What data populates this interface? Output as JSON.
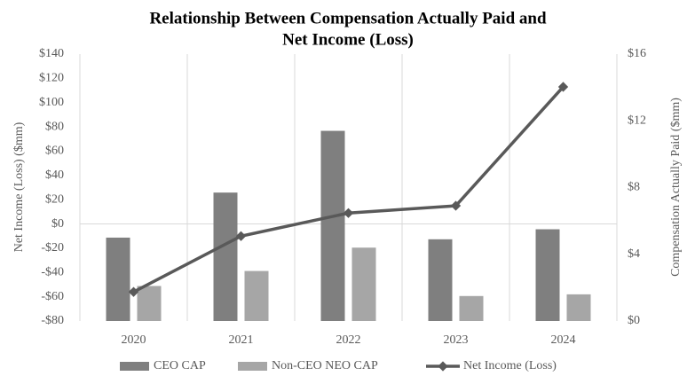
{
  "chart_data": {
    "type": "bar-line",
    "title": [
      "Relationship Between Compensation Actually Paid and",
      "Net Income (Loss)"
    ],
    "y_label": "Net Income (Loss) ($mm)",
    "y2_label": "Compensation Actually Paid ($mm)",
    "categories": [
      "2020",
      "2021",
      "2022",
      "2023",
      "2024"
    ],
    "ylim": [
      -80,
      140
    ],
    "yticks": [
      {
        "value": -80,
        "label": "-$80"
      },
      {
        "value": -60,
        "label": "-$60"
      },
      {
        "value": -40,
        "label": "-$40"
      },
      {
        "value": -20,
        "label": "-$20"
      },
      {
        "value": 0,
        "label": "$0"
      },
      {
        "value": 20,
        "label": "$20"
      },
      {
        "value": 40,
        "label": "$40"
      },
      {
        "value": 60,
        "label": "$60"
      },
      {
        "value": 80,
        "label": "$80"
      },
      {
        "value": 100,
        "label": "$100"
      },
      {
        "value": 120,
        "label": "$120"
      },
      {
        "value": 140,
        "label": "$140"
      }
    ],
    "y2lim": [
      0,
      16
    ],
    "y2ticks": [
      {
        "value": 0,
        "label": "$0"
      },
      {
        "value": 4,
        "label": "$4"
      },
      {
        "value": 8,
        "label": "$8"
      },
      {
        "value": 12,
        "label": "$12"
      },
      {
        "value": 16,
        "label": "$16"
      }
    ],
    "series": [
      {
        "name": "CEO CAP",
        "type": "bar",
        "axis": "y2",
        "color": "#7f7f7f",
        "values": [
          5.0,
          7.7,
          11.4,
          4.9,
          5.5
        ]
      },
      {
        "name": "Non-CEO NEO CAP",
        "type": "bar",
        "axis": "y2",
        "color": "#a6a6a6",
        "values": [
          2.1,
          3.0,
          4.4,
          1.5,
          1.6
        ]
      },
      {
        "name": "Net Income (Loss)",
        "type": "line",
        "axis": "y",
        "color": "#595959",
        "values": [
          -56,
          -10,
          9,
          15,
          113
        ]
      }
    ],
    "legend": "bottom"
  }
}
